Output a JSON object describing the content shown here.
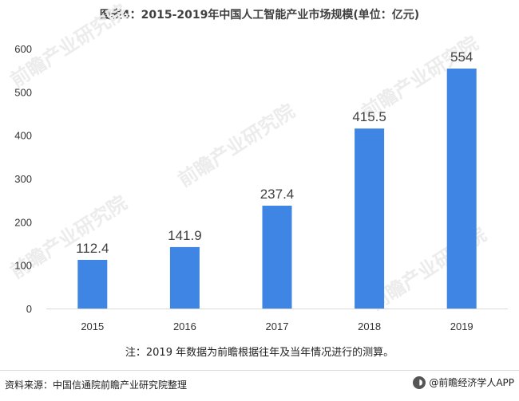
{
  "title": "图表4：2015-2019年中国人工智能产业市场规模(单位：亿元)",
  "note": "注：2019 年数据为前瞻根据往年及当年情况进行的测算。",
  "source": "资料来源：中国信通院前瞻产业研究院整理",
  "brand": "@前瞻经济学人APP",
  "watermark": "前瞻产业研究院",
  "colors": {
    "bar": "#3f86e4",
    "axis": "#d9d9d9",
    "tick_text": "#333333",
    "label_text": "#404040"
  },
  "chart_data": {
    "type": "bar",
    "categories": [
      "2015",
      "2016",
      "2017",
      "2018",
      "2019"
    ],
    "values": [
      112.4,
      141.9,
      237.4,
      415.5,
      554
    ],
    "value_labels": [
      "112.4",
      "141.9",
      "237.4",
      "415.5",
      "554"
    ],
    "yticks": [
      "0",
      "100",
      "200",
      "300",
      "400",
      "500",
      "600"
    ],
    "ylim": [
      0,
      600
    ],
    "grid": false,
    "legend": "none"
  }
}
